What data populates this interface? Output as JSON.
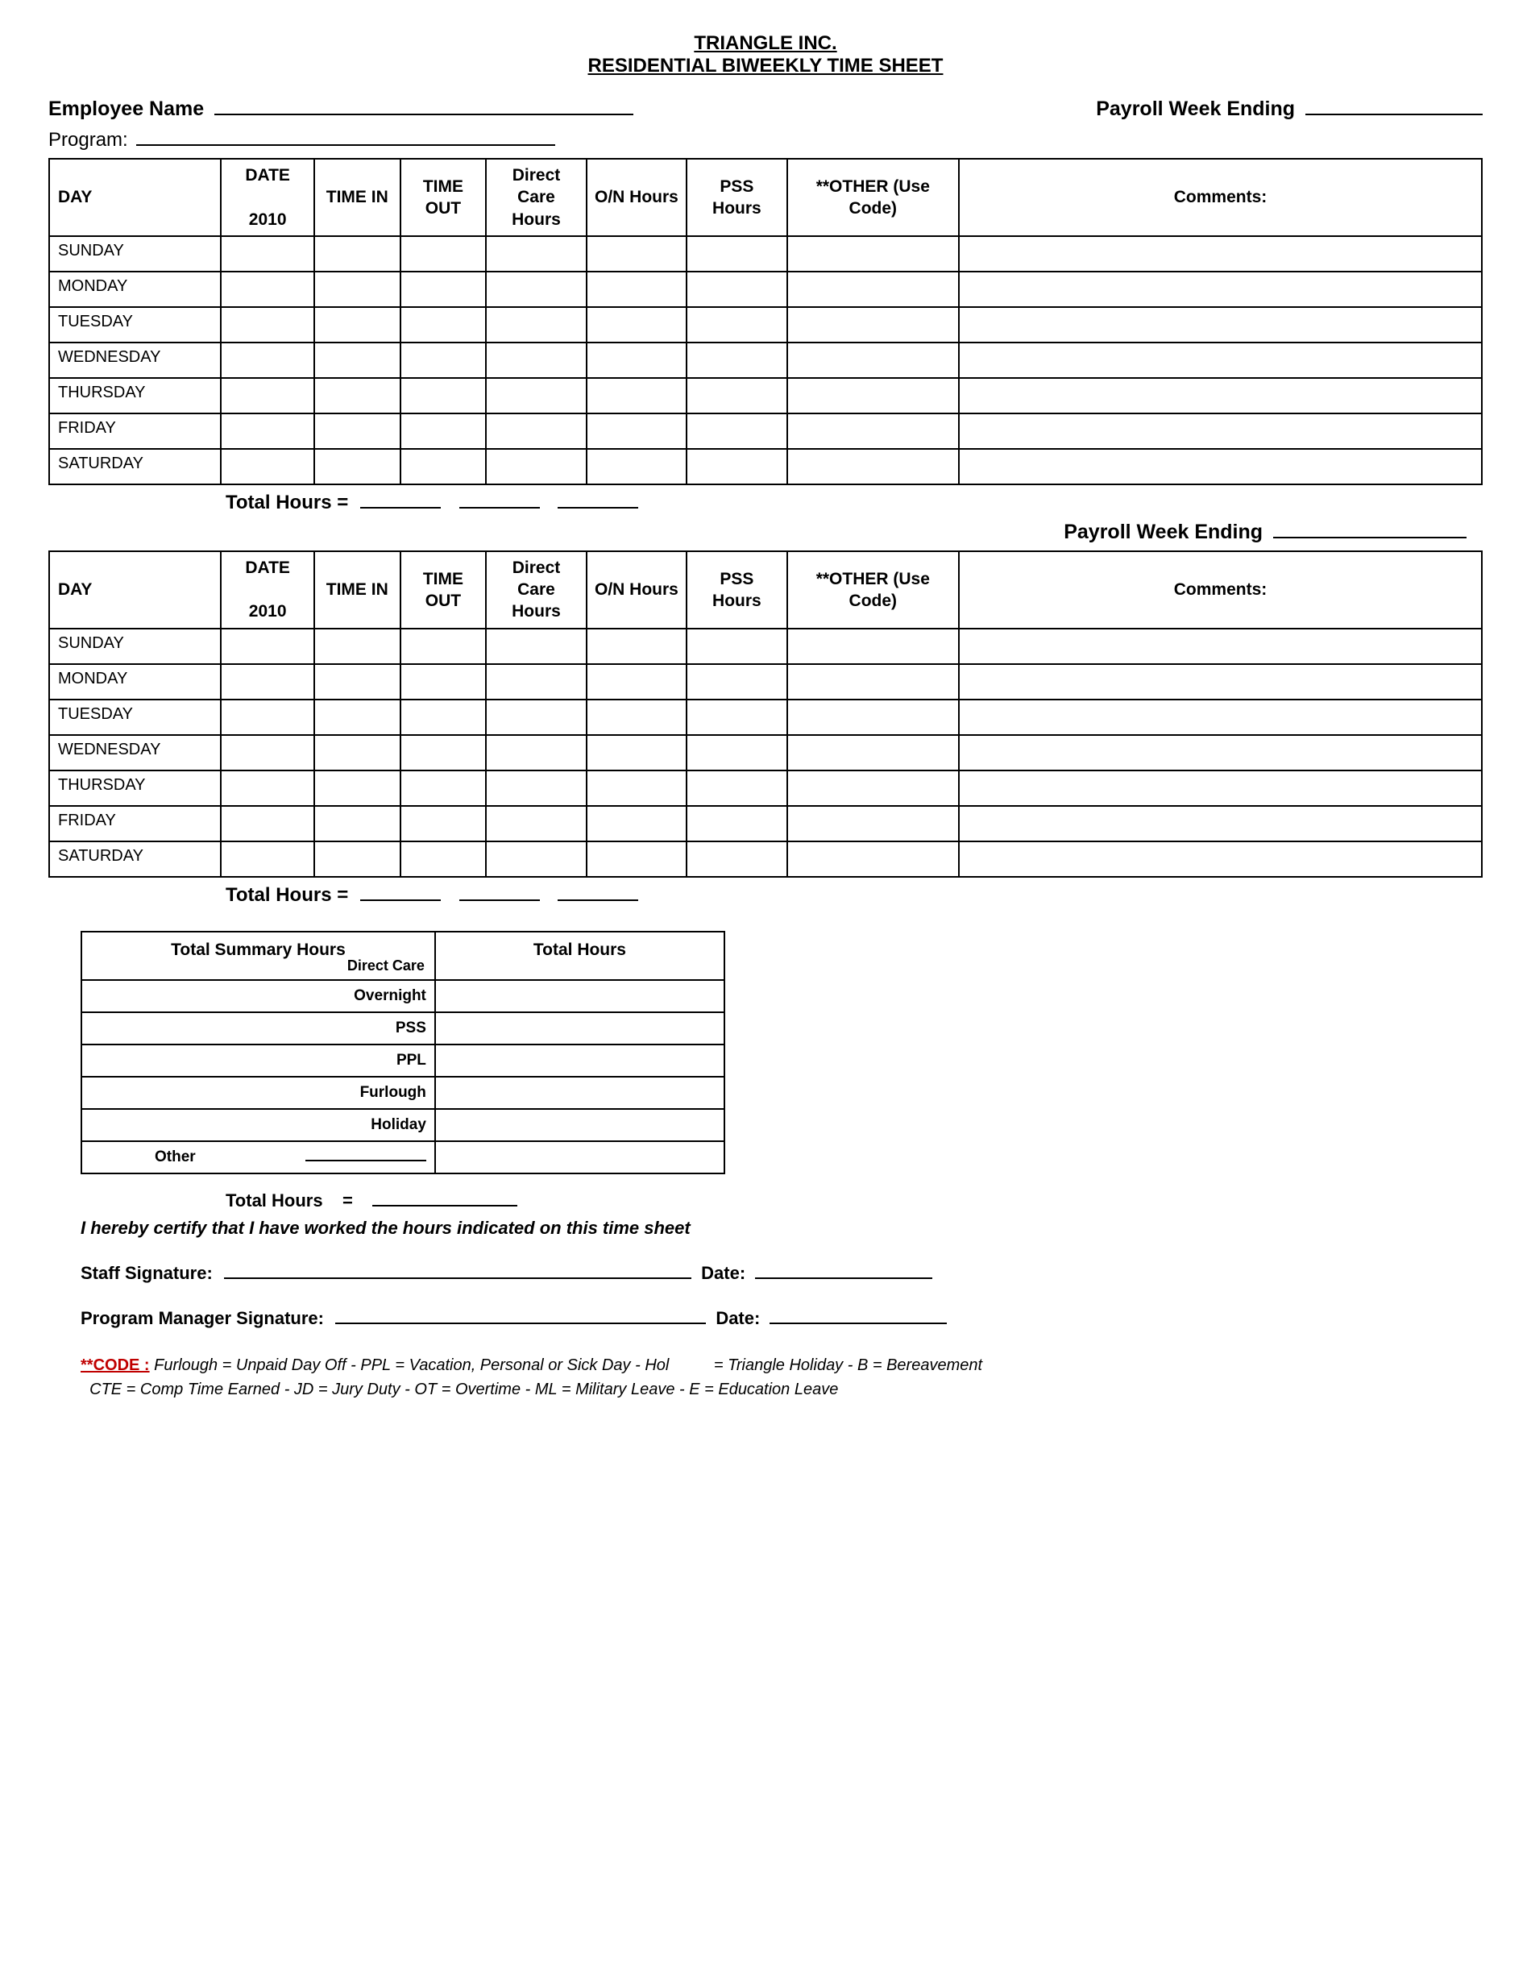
{
  "title": {
    "company": "TRIANGLE INC.",
    "doc": "RESIDENTIAL BIWEEKLY TIME SHEET"
  },
  "header": {
    "employee_label": "Employee Name",
    "payroll_label": "Payroll Week Ending",
    "program_label": "Program:"
  },
  "columns": {
    "day": "DAY",
    "date_top": "DATE",
    "date_bottom": "2010",
    "time_in": "TIME IN",
    "time_out": "TIME OUT",
    "direct_care": "Direct Care Hours",
    "on_hours": "O/N Hours",
    "pss_hours": "PSS Hours",
    "other": "**OTHER (Use Code)",
    "comments": "Comments:"
  },
  "days": [
    "SUNDAY",
    "MONDAY",
    "TUESDAY",
    "WEDNESDAY",
    "THURSDAY",
    "FRIDAY",
    "SATURDAY"
  ],
  "totals_label": "Total Hours =",
  "payroll2_label": "Payroll Week Ending",
  "summary": {
    "head_left": "Total Summary Hours",
    "head_left_sub": "Direct Care",
    "head_right": "Total Hours",
    "rows": [
      "Overnight",
      "PSS",
      "PPL",
      "Furlough",
      "Holiday"
    ],
    "other_label": "Other",
    "grand_total": "Total Hours",
    "equals": "="
  },
  "certify": "I hereby certify that I have worked the hours indicated on this time sheet",
  "signatures": {
    "staff_label": "Staff Signature:",
    "date_label": "Date:",
    "pm_label": "Program Manager Signature:"
  },
  "code": {
    "label": "**CODE :",
    "line1_parts": [
      "Furlough = Unpaid Day Off  -  PPL = Vacation, Personal or Sick Day  -  Hol",
      "= Triangle Holiday  - B = Bereavement"
    ],
    "line2": "CTE = Comp Time Earned   - JD = Jury Duty  - OT = Overtime -  ML  =  Military Leave -  E  = Education Leave"
  },
  "colors": {
    "text": "#000000",
    "background": "#ffffff",
    "code_red": "#c00000",
    "border": "#000000"
  }
}
